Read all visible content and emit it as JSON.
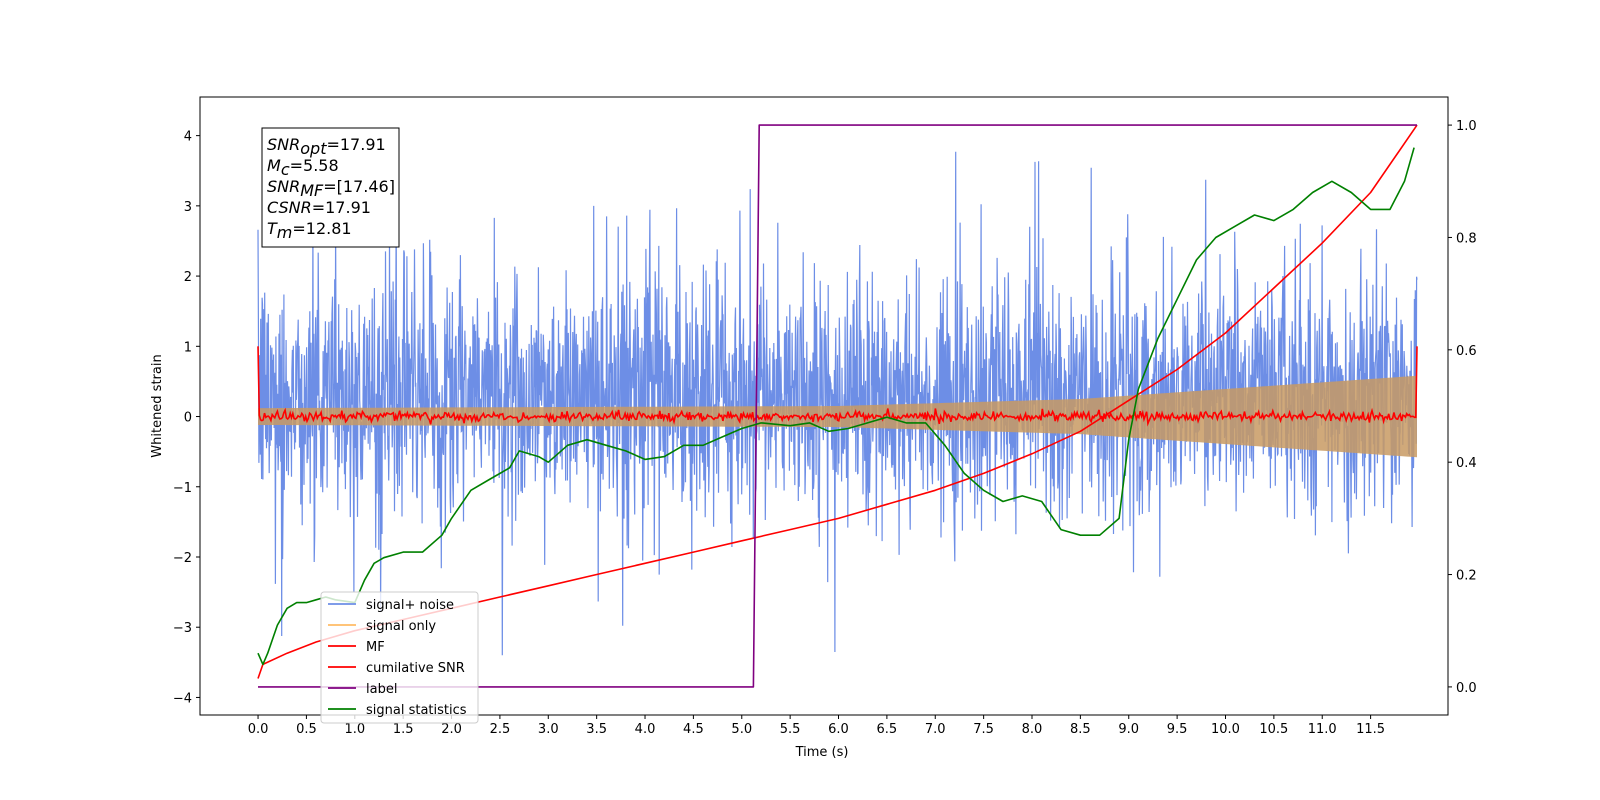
{
  "chart_data": {
    "type": "line",
    "xlabel": "Time (s)",
    "ylabel": "Whitened strain",
    "xlim": [
      -0.6,
      12.3
    ],
    "ylim": [
      -4.25,
      4.55
    ],
    "ylim_right": [
      -0.05,
      1.05
    ],
    "x_ticks": [
      "0.0",
      "0.5",
      "1.0",
      "1.5",
      "2.0",
      "2.5",
      "3.0",
      "3.5",
      "4.0",
      "4.5",
      "5.0",
      "5.5",
      "6.0",
      "6.5",
      "7.0",
      "7.5",
      "8.0",
      "8.5",
      "9.0",
      "9.5",
      "10.0",
      "10.5",
      "11.0",
      "11.5"
    ],
    "y_ticks": [
      "4",
      "3",
      "2",
      "1",
      "0",
      "−1",
      "−2",
      "−3",
      "−4"
    ],
    "y_ticks_right": [
      "1.0",
      "0.8",
      "0.6",
      "0.4",
      "0.2",
      "0.0"
    ],
    "t_end": 11.98,
    "series": [
      {
        "name": "signal+ noise",
        "color": "#6d8ee6",
        "axis": "left",
        "description": "noisy whitened strain, roughly +/-2 with spikes to about +/-3.3, baseline offset +0.3 above strain 0"
      },
      {
        "name": "signal only",
        "color": "#ffbb66",
        "axis": "left",
        "envelope": {
          "x": [
            0,
            6,
            8.5,
            11.98
          ],
          "amplitude": [
            0.12,
            0.15,
            0.25,
            0.58
          ]
        }
      },
      {
        "name": "MF",
        "color": "#ff0000",
        "axis": "left",
        "description": "matched filter output, about 0 with small noise, starts and ends at 1.0",
        "start_value": 1.0,
        "end_value": 1.0
      },
      {
        "name": "cumilative SNR",
        "color": "#ff0000",
        "axis": "right",
        "x": [
          0,
          0.05,
          0.3,
          0.6,
          1.0,
          1.5,
          2.0,
          2.5,
          3.0,
          3.5,
          4.0,
          4.5,
          5.0,
          5.5,
          6.0,
          6.5,
          7.0,
          7.5,
          8.0,
          8.5,
          9.0,
          9.5,
          10.0,
          10.5,
          11.0,
          11.5,
          11.98
        ],
        "values": [
          0.015,
          0.04,
          0.06,
          0.08,
          0.1,
          0.12,
          0.14,
          0.16,
          0.18,
          0.2,
          0.22,
          0.24,
          0.26,
          0.28,
          0.3,
          0.325,
          0.35,
          0.38,
          0.415,
          0.455,
          0.51,
          0.565,
          0.63,
          0.71,
          0.79,
          0.88,
          1.0
        ]
      },
      {
        "name": "label",
        "color": "#800080",
        "axis": "right",
        "x": [
          0,
          5.12,
          5.18,
          11.98
        ],
        "values": [
          0.0,
          0.0,
          1.0,
          1.0
        ]
      },
      {
        "name": "signal statistics",
        "color": "#008000",
        "axis": "right",
        "x": [
          0,
          0.05,
          0.1,
          0.2,
          0.3,
          0.4,
          0.5,
          0.6,
          0.7,
          0.8,
          1.0,
          1.1,
          1.2,
          1.3,
          1.5,
          1.7,
          1.9,
          2.0,
          2.2,
          2.4,
          2.6,
          2.7,
          2.9,
          3.0,
          3.2,
          3.4,
          3.6,
          3.8,
          4.0,
          4.2,
          4.4,
          4.6,
          4.8,
          5.0,
          5.2,
          5.5,
          5.7,
          5.9,
          6.1,
          6.3,
          6.5,
          6.7,
          6.9,
          7.1,
          7.3,
          7.5,
          7.7,
          7.9,
          8.1,
          8.3,
          8.5,
          8.7,
          8.9,
          9.0,
          9.1,
          9.3,
          9.5,
          9.7,
          9.9,
          10.1,
          10.3,
          10.5,
          10.7,
          10.9,
          11.1,
          11.3,
          11.5,
          11.7,
          11.85,
          11.95
        ],
        "values": [
          0.06,
          0.04,
          0.06,
          0.11,
          0.14,
          0.15,
          0.15,
          0.155,
          0.16,
          0.155,
          0.15,
          0.19,
          0.22,
          0.23,
          0.24,
          0.24,
          0.27,
          0.3,
          0.35,
          0.37,
          0.39,
          0.42,
          0.41,
          0.4,
          0.43,
          0.44,
          0.43,
          0.42,
          0.405,
          0.41,
          0.43,
          0.43,
          0.445,
          0.46,
          0.47,
          0.465,
          0.47,
          0.455,
          0.46,
          0.47,
          0.48,
          0.47,
          0.47,
          0.43,
          0.38,
          0.35,
          0.33,
          0.34,
          0.33,
          0.28,
          0.27,
          0.27,
          0.3,
          0.44,
          0.53,
          0.62,
          0.69,
          0.76,
          0.8,
          0.82,
          0.84,
          0.83,
          0.85,
          0.88,
          0.9,
          0.88,
          0.85,
          0.85,
          0.9,
          0.96
        ]
      }
    ],
    "annotations": [
      {
        "name": "SNR",
        "sub": "opt",
        "value": "17.91"
      },
      {
        "name": "M",
        "sub": "c",
        "value": "5.58"
      },
      {
        "name": "SNR",
        "sub": "MF",
        "value": "[17.46]"
      },
      {
        "name": "CSNR",
        "sub": "",
        "value": "17.91"
      },
      {
        "name": "T",
        "sub": "m",
        "value": "12.81"
      }
    ],
    "legend_position": "lower-left",
    "grid": false
  }
}
